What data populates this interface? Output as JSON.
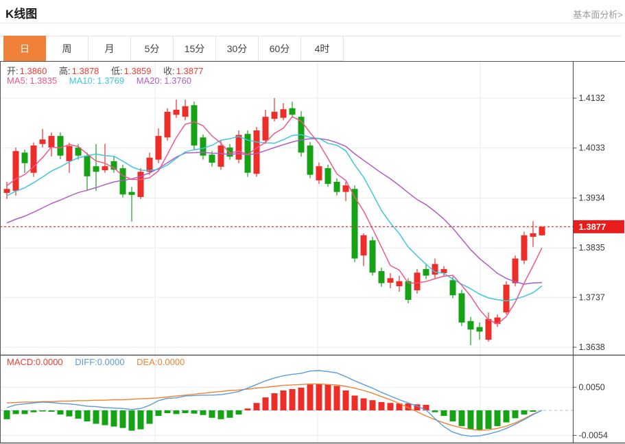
{
  "header": {
    "title": "K线图",
    "link_label": "基本面分析>"
  },
  "tabs": {
    "items": [
      {
        "label": "日",
        "active": true
      },
      {
        "label": "周",
        "active": false
      },
      {
        "label": "月",
        "active": false
      },
      {
        "label": "5分",
        "active": false
      },
      {
        "label": "15分",
        "active": false
      },
      {
        "label": "30分",
        "active": false
      },
      {
        "label": "60分",
        "active": false
      },
      {
        "label": "4时",
        "active": false
      }
    ]
  },
  "overlays": {
    "ohlc": [
      {
        "label": "开:",
        "value": "1.3860"
      },
      {
        "label": "高:",
        "value": "1.3878"
      },
      {
        "label": "低:",
        "value": "1.3859"
      },
      {
        "label": "收:",
        "value": "1.3877"
      }
    ],
    "ma": [
      {
        "label": "MA5:",
        "value": "1.3835"
      },
      {
        "label": "MA10:",
        "value": "1.3769"
      },
      {
        "label": "MA20:",
        "value": "1.3760"
      }
    ],
    "macd": [
      {
        "label": "MACD:",
        "value": "0.0000"
      },
      {
        "label": "DIFF:",
        "value": "0.0000"
      },
      {
        "label": "DEA:",
        "value": "0.0000"
      }
    ]
  },
  "colors": {
    "up": "#ec2d28",
    "down": "#15a315",
    "ma5": "#f0578a",
    "ma10": "#3fc6df",
    "ma20": "#b05cc8",
    "diff": "#5a9bd8",
    "dea": "#f08232",
    "price_line": "#f22b2b",
    "price_label_bg": "#ea1d1d",
    "grid": "#e7edf3",
    "zero_line": "#b5d8ef",
    "frame": "#555555",
    "axis_text": "#3a3a3a",
    "value_red": "#f03b30",
    "tab_active_bg": "#ef8139",
    "link": "#9b9b9b"
  },
  "chart_data": {
    "type": "candlestick+macd",
    "title": "K线图",
    "panels": [
      "price",
      "macd"
    ],
    "interval": "日",
    "price_axis": {
      "ticks": [
        "1.4132",
        "1.4033",
        "1.3934",
        "1.3835",
        "1.3737",
        "1.3638"
      ],
      "max": 1.4132,
      "min": 1.3638
    },
    "current_price": "1.3877",
    "last_ohlc": {
      "open": "1.3860",
      "high": "1.3878",
      "low": "1.3859",
      "close": "1.3877"
    },
    "ma_periods": [
      5,
      10,
      20
    ],
    "ma_last": {
      "ma5": "1.3835",
      "ma10": "1.3769",
      "ma20": "1.3760"
    },
    "ma_start": {
      "ma5": 1.396,
      "ma10": 1.3937,
      "ma20": 1.3881
    },
    "candles": [
      [
        1.3944,
        1.3966,
        1.3932,
        1.3952
      ],
      [
        1.3948,
        1.4034,
        1.3939,
        1.4027
      ],
      [
        1.4024,
        1.403,
        1.3984,
        1.4003
      ],
      [
        1.3984,
        1.4044,
        1.3976,
        1.4038
      ],
      [
        1.4041,
        1.4071,
        1.4034,
        1.405
      ],
      [
        1.4034,
        1.4064,
        1.4016,
        1.4057
      ],
      [
        1.4057,
        1.4064,
        1.4011,
        1.4018
      ],
      [
        1.4007,
        1.4044,
        1.3984,
        1.4037
      ],
      [
        1.4034,
        1.4041,
        1.401,
        1.4018
      ],
      [
        1.4018,
        1.4024,
        1.3948,
        1.3977
      ],
      [
        1.3997,
        1.4041,
        1.3948,
        1.3986
      ],
      [
        1.3989,
        1.4041,
        1.3984,
        1.3997
      ],
      [
        1.4007,
        1.4016,
        1.3984,
        1.399
      ],
      [
        1.3993,
        1.4,
        1.3935,
        1.3941
      ],
      [
        1.3946,
        1.3956,
        1.3887,
        1.394
      ],
      [
        1.3936,
        1.3993,
        1.3932,
        1.3986
      ],
      [
        1.3986,
        1.4024,
        1.398,
        1.4014
      ],
      [
        1.401,
        1.4072,
        1.4003,
        1.4057
      ],
      [
        1.4054,
        1.4112,
        1.4048,
        1.4105
      ],
      [
        1.4099,
        1.4129,
        1.4093,
        1.4109
      ],
      [
        1.4095,
        1.4129,
        1.4088,
        1.4116
      ],
      [
        1.4118,
        1.4125,
        1.403,
        1.4038
      ],
      [
        1.4054,
        1.406,
        1.401,
        1.4018
      ],
      [
        1.402,
        1.4027,
        1.3996,
        1.4004
      ],
      [
        1.3996,
        1.4048,
        1.399,
        1.4038
      ],
      [
        1.4034,
        1.4041,
        1.401,
        1.4016
      ],
      [
        1.401,
        1.4068,
        1.4003,
        1.4059
      ],
      [
        1.4061,
        1.4068,
        1.3976,
        1.3984
      ],
      [
        1.3982,
        1.4075,
        1.3976,
        1.4068
      ],
      [
        1.4048,
        1.4109,
        1.4041,
        1.4095
      ],
      [
        1.4091,
        1.4132,
        1.4086,
        1.4105
      ],
      [
        1.4093,
        1.4122,
        1.4088,
        1.411
      ],
      [
        1.4112,
        1.4125,
        1.4093,
        1.4099
      ],
      [
        1.4095,
        1.4106,
        1.4016,
        1.4024
      ],
      [
        1.4038,
        1.4045,
        1.3973,
        1.398
      ],
      [
        1.3969,
        1.4004,
        1.3962,
        1.3997
      ],
      [
        1.3993,
        1.4,
        1.3956,
        1.3962
      ],
      [
        1.3966,
        1.3973,
        1.3939,
        1.3946
      ],
      [
        1.3946,
        1.3966,
        1.3928,
        1.3959
      ],
      [
        1.3952,
        1.3959,
        1.3807,
        1.3814
      ],
      [
        1.382,
        1.3864,
        1.3799,
        1.386
      ],
      [
        1.385,
        1.3857,
        1.378,
        1.3786
      ],
      [
        1.3789,
        1.3796,
        1.3758,
        1.3765
      ],
      [
        1.3766,
        1.3785,
        1.3755,
        1.3775
      ],
      [
        1.3759,
        1.378,
        1.3748,
        1.3769
      ],
      [
        1.3769,
        1.3775,
        1.3725,
        1.3732
      ],
      [
        1.3751,
        1.3793,
        1.3744,
        1.3786
      ],
      [
        1.3793,
        1.3803,
        1.3773,
        1.378
      ],
      [
        1.3782,
        1.3814,
        1.3775,
        1.3803
      ],
      [
        1.3785,
        1.3799,
        1.3778,
        1.3793
      ],
      [
        1.3771,
        1.3778,
        1.3735,
        1.3741
      ],
      [
        1.3745,
        1.3752,
        1.368,
        1.3687
      ],
      [
        1.369,
        1.3698,
        1.3642,
        1.3673
      ],
      [
        1.3678,
        1.3687,
        1.3653,
        1.3669
      ],
      [
        1.3653,
        1.3707,
        1.3649,
        1.3694
      ],
      [
        1.3684,
        1.3703,
        1.3678,
        1.3697
      ],
      [
        1.3707,
        1.3769,
        1.3703,
        1.3762
      ],
      [
        1.3765,
        1.382,
        1.3759,
        1.3814
      ],
      [
        1.381,
        1.3867,
        1.3803,
        1.386
      ],
      [
        1.3857,
        1.3888,
        1.3837,
        1.3864
      ],
      [
        1.386,
        1.3878,
        1.3859,
        1.3877
      ]
    ],
    "macd_axis": {
      "ticks": [
        "0.0050",
        "-0.0054"
      ]
    },
    "macd": {
      "hist": [
        -0.0019,
        -0.0008,
        -0.0008,
        -0.0004,
        -0.0002,
        -0.0003,
        -0.0009,
        -0.0013,
        -0.0018,
        -0.0024,
        -0.0029,
        -0.0032,
        -0.0035,
        -0.0038,
        -0.0044,
        -0.0041,
        -0.0029,
        -0.0012,
        -0.0006,
        -0.0008,
        -0.0006,
        -0.0007,
        -0.001,
        -0.0016,
        -0.0019,
        -0.0016,
        -0.0009,
        0.0004,
        0.0016,
        0.0028,
        0.0037,
        0.0043,
        0.0046,
        0.0049,
        0.0056,
        0.0057,
        0.0056,
        0.0053,
        0.0043,
        0.0032,
        0.0026,
        0.0022,
        0.0018,
        0.0016,
        0.0015,
        0.0015,
        0.0013,
        0.0012,
        -0.0004,
        -0.0012,
        -0.0024,
        -0.0034,
        -0.0041,
        -0.0043,
        -0.004,
        -0.0034,
        -0.0026,
        -0.0017,
        -0.0009,
        -0.0003,
        0.0
      ],
      "diff": [
        0.0006,
        0.0012,
        0.0014,
        0.0016,
        0.0018,
        0.0017,
        0.0015,
        0.0014,
        0.0012,
        0.0009,
        0.0008,
        0.0006,
        0.0005,
        0.0004,
        0.0002,
        0.0004,
        0.0011,
        0.0021,
        0.0026,
        0.0027,
        0.0031,
        0.0032,
        0.0033,
        0.0033,
        0.0034,
        0.0037,
        0.0041,
        0.0048,
        0.0056,
        0.0064,
        0.007,
        0.0075,
        0.0078,
        0.008,
        0.0085,
        0.0086,
        0.0084,
        0.0081,
        0.0073,
        0.0064,
        0.0056,
        0.0048,
        0.0039,
        0.0031,
        0.0023,
        0.0016,
        0.0009,
        0.0001,
        -0.0018,
        -0.0035,
        -0.0047,
        -0.0053,
        -0.0056,
        -0.0055,
        -0.0051,
        -0.0046,
        -0.0039,
        -0.003,
        -0.002,
        -0.0009,
        0.0
      ],
      "dea": [
        0.0016,
        0.0017,
        0.0018,
        0.0018,
        0.0019,
        0.0019,
        0.002,
        0.002,
        0.0021,
        0.0021,
        0.0022,
        0.0022,
        0.0023,
        0.0023,
        0.0024,
        0.0025,
        0.0026,
        0.0027,
        0.0029,
        0.0031,
        0.0033,
        0.0035,
        0.0037,
        0.0039,
        0.0041,
        0.0043,
        0.0044,
        0.0046,
        0.0048,
        0.005,
        0.0052,
        0.0054,
        0.0055,
        0.0056,
        0.0057,
        0.0057,
        0.0056,
        0.0055,
        0.0052,
        0.0048,
        0.0043,
        0.0037,
        0.003,
        0.0023,
        0.0015,
        0.0006,
        -0.0003,
        -0.0012,
        -0.002,
        -0.0027,
        -0.0033,
        -0.0038,
        -0.0041,
        -0.0043,
        -0.0042,
        -0.0039,
        -0.0034,
        -0.0027,
        -0.0018,
        -0.0008,
        0.0
      ]
    }
  }
}
